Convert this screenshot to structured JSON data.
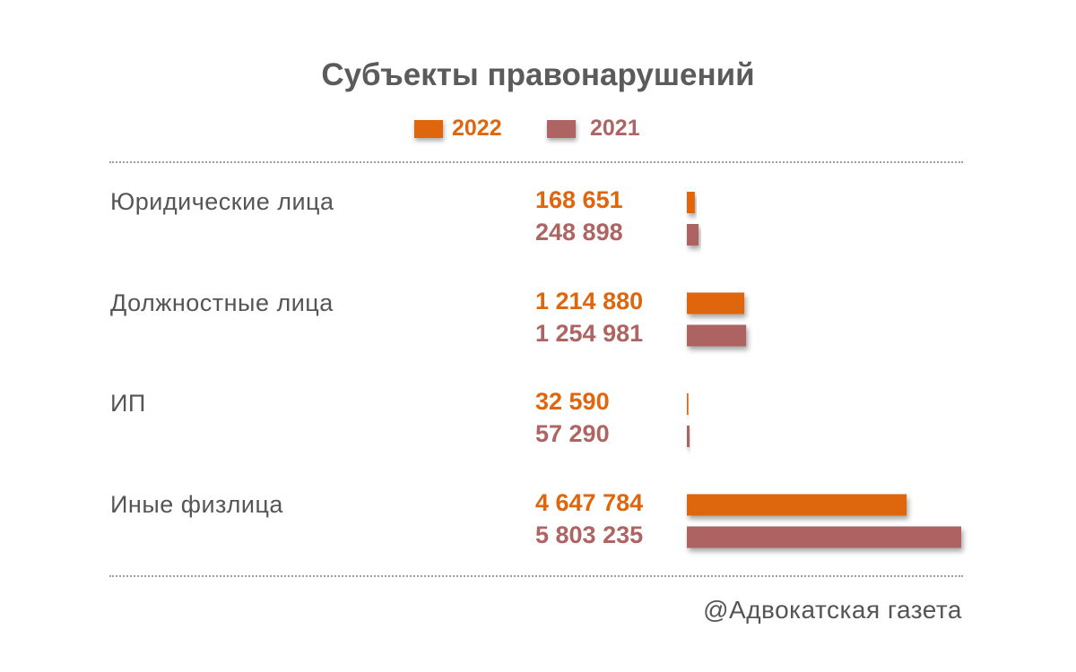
{
  "chart_data": {
    "type": "bar",
    "orientation": "horizontal",
    "title": "Субъекты правонарушений",
    "categories": [
      "Юридические лица",
      "Должностные лица",
      "ИП",
      "Иные физлица"
    ],
    "series": [
      {
        "name": "2022",
        "color": "#e0660d",
        "values": [
          168651,
          1214880,
          32590,
          4647784
        ],
        "labels": [
          "168 651",
          "1 214 880",
          "32 590",
          "4 647 784"
        ]
      },
      {
        "name": "2021",
        "color": "#ad6462",
        "values": [
          248898,
          1254981,
          57290,
          5803235
        ],
        "labels": [
          "248 898",
          "1 254 981",
          "57 290",
          "5 803 235"
        ]
      }
    ],
    "legend_position": "top",
    "grid": false,
    "axes_visible": false
  },
  "footer": {
    "credit": "@Адвокатская газета"
  }
}
